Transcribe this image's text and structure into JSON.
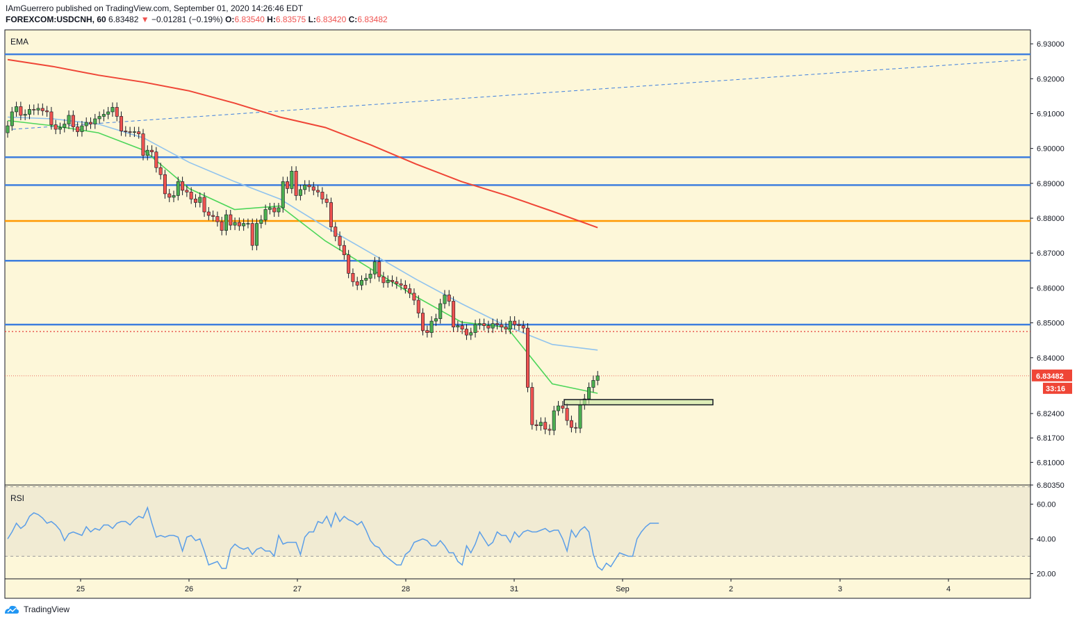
{
  "header": {
    "published_line": "IAmGuerrero published on TradingView.com, September 01, 2020 14:26:46 EDT",
    "symbol": "FOREXCOM:USDCNH, 60",
    "last": "6.83482",
    "arrow": "▼",
    "change": "−0.01281 (−0.19%)",
    "o_label": "O:",
    "o_value": "6.83540",
    "h_label": "H:",
    "h_value": "6.83575",
    "l_label": "L:",
    "l_value": "6.83420",
    "c_label": "C:",
    "c_value": "6.83482"
  },
  "footer": {
    "brand": "TradingView",
    "logo_icon": "tradingview-logo-icon"
  },
  "colors": {
    "background": "#fdf7d9",
    "up": "#4caf50",
    "down": "#ef5350",
    "ema_fast": "#4dd65a",
    "ema_mid": "#90c3ee",
    "ema_slow": "#ef4536",
    "hline": "#3d7ede",
    "orange": "#ff9800",
    "rsi": "#5b9ee8",
    "rsi_band": "#f1ebd3",
    "price_tag": "#ef4536"
  },
  "chart_data": [
    {
      "type": "candlestick",
      "indicator_label": "EMA",
      "ylim": [
        6.8035,
        6.934
      ],
      "price_ticks": [
        "6.93000",
        "6.92000",
        "6.91000",
        "6.90000",
        "6.89000",
        "6.88000",
        "6.87000",
        "6.86000",
        "6.85000",
        "6.84000",
        "6.82400",
        "6.81700",
        "6.81000",
        "6.80350"
      ],
      "x_ticks": [
        "25",
        "26",
        "27",
        "28",
        "31",
        "Sep",
        "2",
        "3",
        "4"
      ],
      "current_price_label": "6.83482",
      "countdown_label": "33:16",
      "horizontal_lines": [
        {
          "price": 6.927,
          "color": "blue"
        },
        {
          "price": 6.8975,
          "color": "blue"
        },
        {
          "price": 6.8895,
          "color": "blue"
        },
        {
          "price": 6.8792,
          "color": "orange"
        },
        {
          "price": 6.8678,
          "color": "blue"
        },
        {
          "price": 6.8495,
          "color": "blue"
        },
        {
          "price": 6.8475,
          "color": "red-dotted"
        },
        {
          "price": 6.8348,
          "color": "red-dotted-fine"
        }
      ],
      "trend_line": {
        "from_price": 6.9055,
        "to_price": 6.9255,
        "style": "dashed"
      },
      "support_zone": {
        "price_low": 6.8265,
        "price_high": 6.828
      },
      "ema_slow": [
        6.9255,
        6.9235,
        6.921,
        6.919,
        6.9165,
        6.913,
        6.909,
        6.906,
        6.901,
        6.8955,
        6.8905,
        6.8865,
        6.882,
        6.8773
      ],
      "ema_mid": [
        6.909,
        6.9085,
        6.907,
        6.903,
        6.896,
        6.8905,
        6.8855,
        6.8775,
        6.87,
        6.8625,
        6.8555,
        6.849,
        6.8438,
        6.8422
      ],
      "ema_fast": [
        6.908,
        6.9065,
        6.9045,
        6.8995,
        6.8885,
        6.8825,
        6.8835,
        6.8735,
        6.8655,
        6.8575,
        6.8502,
        6.8487,
        6.8325,
        6.8298
      ],
      "closes": [
        6.9065,
        6.9105,
        6.912,
        6.9095,
        6.9098,
        6.9112,
        6.911,
        6.9115,
        6.9108,
        6.9105,
        6.9068,
        6.9055,
        6.906,
        6.907,
        6.9095,
        6.9062,
        6.9048,
        6.9065,
        6.9075,
        6.907,
        6.9085,
        6.9092,
        6.9098,
        6.9105,
        6.9118,
        6.9092,
        6.905,
        6.9048,
        6.9047,
        6.9048,
        6.9042,
        6.898,
        6.8995,
        6.899,
        6.8945,
        6.8925,
        6.887,
        6.886,
        6.8865,
        6.8905,
        6.888,
        6.8875,
        6.8855,
        6.8845,
        6.886,
        6.8818,
        6.8808,
        6.8805,
        6.879,
        6.8765,
        6.881,
        6.878,
        6.8788,
        6.8778,
        6.8785,
        6.8785,
        6.8722,
        6.8785,
        6.8795,
        6.8825,
        6.883,
        6.8818,
        6.883,
        6.8905,
        6.8885,
        6.8935,
        6.8865,
        6.8882,
        6.8895,
        6.889,
        6.888,
        6.8875,
        6.8855,
        6.8845,
        6.8775,
        6.8748,
        6.8722,
        6.8695,
        6.8642,
        6.8618,
        6.8608,
        6.8622,
        6.8628,
        6.864,
        6.8675,
        6.8632,
        6.8615,
        6.8622,
        6.8618,
        6.8612,
        6.8608,
        6.8598,
        6.8585,
        6.8565,
        6.8528,
        6.8478,
        6.8472,
        6.8505,
        6.8512,
        6.8555,
        6.858,
        6.8562,
        6.8488,
        6.8492,
        6.8482,
        6.8465,
        6.8472,
        6.8495,
        6.8498,
        6.8492,
        6.8485,
        6.8498,
        6.8495,
        6.8488,
        6.8482,
        6.8505,
        6.8495,
        6.8492,
        6.8485,
        6.8315,
        6.8208,
        6.8205,
        6.8215,
        6.8195,
        6.8192,
        6.8248,
        6.8262,
        6.8255,
        6.822,
        6.82,
        6.8198,
        6.8265,
        6.8282,
        6.8315,
        6.8335,
        6.8348
      ]
    },
    {
      "type": "line",
      "indicator_label": "RSI",
      "ylim": [
        17,
        71
      ],
      "y_ticks": [
        "60.00",
        "40.00",
        "20.00"
      ],
      "band": [
        30,
        70
      ],
      "values": [
        40,
        44,
        49,
        46,
        48,
        53,
        55,
        54,
        52,
        49,
        50,
        48,
        45,
        39,
        43,
        44,
        43,
        42,
        47,
        44,
        46,
        45,
        48,
        48,
        46,
        49,
        50,
        50,
        48,
        51,
        53,
        52,
        58,
        49,
        41,
        42,
        41,
        42,
        42,
        41,
        33,
        41,
        42,
        39,
        40,
        33,
        25,
        26,
        27,
        23,
        23,
        34,
        37,
        35,
        34,
        35,
        31,
        34,
        35,
        33,
        33,
        30,
        42,
        37,
        38,
        38,
        38,
        31,
        41,
        44,
        44,
        50,
        49,
        53,
        47,
        55,
        50,
        53,
        51,
        50,
        48,
        50,
        45,
        39,
        36,
        35,
        31,
        29,
        27,
        25,
        25,
        31,
        33,
        38,
        39,
        40,
        39,
        36,
        36,
        39,
        36,
        32,
        32,
        27,
        25,
        36,
        32,
        37,
        44,
        40,
        36,
        38,
        44,
        42,
        42,
        38,
        44,
        41,
        44,
        45,
        44,
        44,
        45,
        46,
        44,
        45,
        45,
        40,
        33,
        45,
        41,
        45,
        47,
        44,
        31,
        24,
        22,
        26,
        24,
        28,
        32,
        31,
        30,
        30,
        40,
        44,
        47,
        49,
        49,
        49
      ]
    }
  ]
}
